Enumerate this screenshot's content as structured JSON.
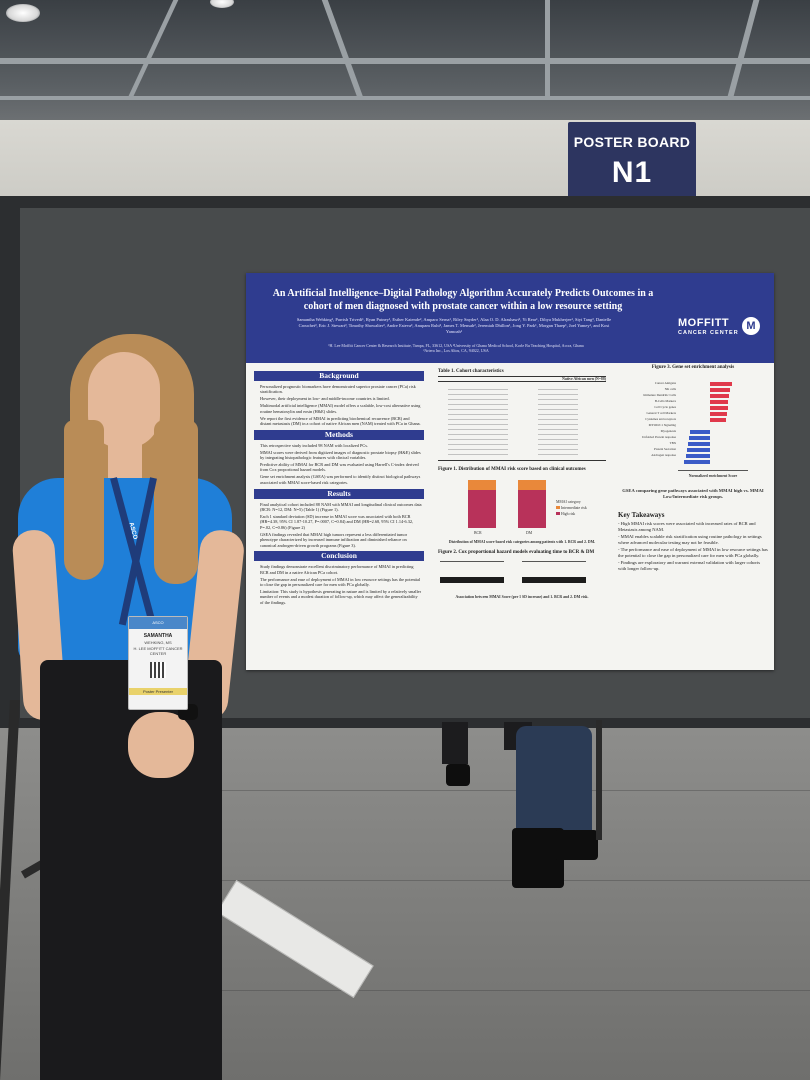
{
  "sign": {
    "line1": "POSTER BOARD",
    "line2": "N1"
  },
  "poster": {
    "title_line1": "An Artificial Intelligence–Digital Pathology Algorithm Accurately Predicts Outcomes in a",
    "title_line2": "cohort of men diagnosed with prostate cancer within a low resource setting",
    "authors": "Samantha Wehking¹, Parrish Trivedi¹, Ryan Putney¹, Esther Kaiende², Amparo Serna¹, Riley Snyder¹, Alaa O. D. Alrashawi³, Yi Rear¹, Dibya Mukherjee¹, Siyi Tang³, Danielle Crouchet³, Eric J. Stewart³, Timothy Showalter³, Andre Esteva³, Anupam Ruhi², James T. Mensah², Jeremiah Dhillon¹, Jong Y. Park¹, Morgan Thaep¹, Joel Yamey¹, and Kosi Yamoah¹",
    "affiliations": "¹H. Lee Moffitt Cancer Center & Research Institute, Tampa, FL, 33612, USA ²University of Ghana Medical School, Korle Bu Teaching Hospital, Accra, Ghana ³Artera Inc., Los Altos, CA, 94022, USA",
    "logo_word": "MOFFITT",
    "logo_sub": "CANCER CENTER",
    "logo_mark": "M",
    "background_head": "Background",
    "background_items": [
      "Personalized prognostic biomarkers have demonstrated superior prostate cancer (PCa) risk stratification.",
      "However, their deployment in low- and middle-income countries is limited.",
      "Multimodal artificial intelligence (MMAI) model offers a scalable, low-cost alternative using routine hematoxylin and eosin (H&E) slides.",
      "We report the first evidence of MMAI in predicting biochemical recurrence (BCR) and distant metastasis (DM) in a cohort of native African men (NAM) treated with PCa in Ghana."
    ],
    "methods_head": "Methods",
    "methods_items": [
      "This retrospective study included 98 NAM with localized PCs.",
      "MMAI scores were derived from digitized images of diagnostic prostate biopsy (H&E) slides by integrating histopathologic features with clinical variables.",
      "Predictive ability of MMAI for BCR and DM was evaluated using Harrell's C-index derived from Cox proportional hazard models.",
      "Gene set enrichment analysis (GSEA) was performed to identify distinct biological pathways associated with MMAI score-based risk categories."
    ],
    "results_head": "Results",
    "results_items": [
      "Final analytical cohort included 88 NAM with MMAI and longitudinal clinical outcomes data (BCR: N=12, DM: N=5) (Table 1) (Figure 1).",
      "Each 1 standard deviation (SD) increase in MMAI score was associated with both BCR (HR=4.38, 95% CI 1.87-10.27, P=.0007, C=0.84) and DM (HR=2.68, 95% CI 1.14-6.32, P=.02, C=0.86) (Figure 2)",
      "GSEA findings revealed that MMAI high tumors represent a less differentiated tumor phenotype characterized by increased immune infiltration and diminished reliance on canonical androgen-driven growth programs (Figure 3)."
    ],
    "conclusion_head": "Conclusion",
    "conclusion_items": [
      "Study findings demonstrate excellent discriminatory performance of MMAI in predicting BCR and DM in a native African PCa cohort.",
      "The performance and ease of deployment of MMAI in low resource settings has the potential to close the gap in personalized care for men with PCa globally.",
      "Limitation: This study is hypothesis generating in nature and is limited by a relatively smaller number of events and a modest duration of follow-up, which may affect the generalizability of the findings."
    ],
    "table1_title": "Table 1. Cohort characteristics",
    "table1_col": "Native African men (N=88)",
    "fig1_title": "Figure 1. Distribution of MMAI risk score based on clinical outcomes",
    "fig1_caption": "Distribution of MMAI score-based risk categories among patients with 1. BCR and 2. DM.",
    "fig1_legend_title": "MMAI category",
    "fig1_legend_1": "Intermediate risk",
    "fig1_legend_2": "High risk",
    "fig1_x1": "BCR",
    "fig1_x2": "DM",
    "fig2_title": "Figure 2. Cox proportional hazard models evaluating time to BCR & DM",
    "fig2_caption": "Association between MMAI Score (per 1 SD increase) and 1. BCR and 2. DM risk.",
    "fig3_title": "Figure 3. Gene set enrichment analysis",
    "fig3_xlabel": "Normalized enrichment Score",
    "fig3_caption": "GSEA comparing gene pathways associated with MMAI high vs. MMAI Low/Intermediate risk groups.",
    "fig3_pathways": [
      "Cancer Antigens",
      "NK cells",
      "Immature Dendritic Cells",
      "B-Cells Markers",
      "Cell Cycle genes",
      "General T cell Markers",
      "Cytokines and receptors",
      "MYOD/C1 Signaling",
      "Myogenesis",
      "Unfolded Protein response",
      "TBX",
      "Protein Secretion",
      "Androgen response"
    ],
    "takeaways_head": "Key Takeaways",
    "takeaways_items": [
      "- High MMAI risk scores were associated with increased rates of BCR and Metastasis among NAM.",
      "- MMAI enables scalable risk stratification using routine pathology in settings where advanced molecular testing may not be feasible.",
      "- The performance and ease of deployment of MMAI in low resource settings has the potential to close the gap in personalized care for men with PCa globally.",
      "- Findings are exploratory and warrant external validation with larger cohorts with longer follow-up."
    ]
  },
  "badge": {
    "header": "ASCO",
    "name": "SAMANTHA",
    "role": "WEHKING, MS",
    "org": "H. LEE MOFFITT CANCER CENTER",
    "footer": "Poster Presenter"
  },
  "lanyard_text": "ASCO"
}
